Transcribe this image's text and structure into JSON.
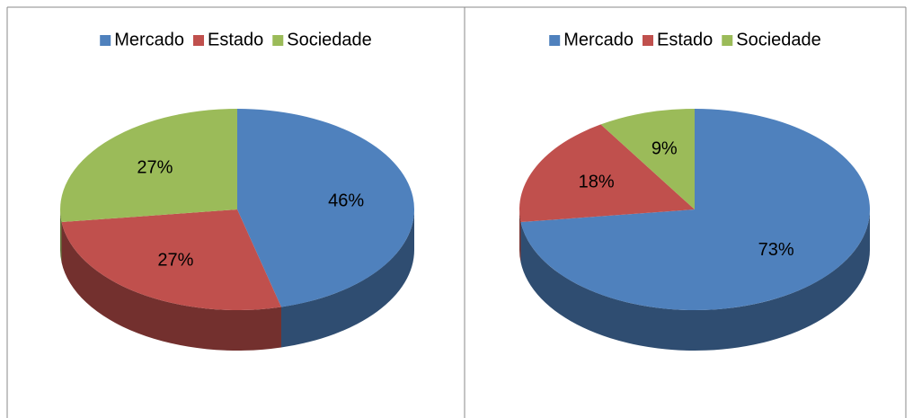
{
  "chart_data": [
    {
      "type": "pie",
      "categories": [
        "Mercado",
        "Estado",
        "Sociedade"
      ],
      "values": [
        46,
        27,
        27
      ],
      "value_labels": [
        "46%",
        "27%",
        "27%"
      ],
      "colors": [
        "#4f81bd",
        "#c0504d",
        "#9bbb59"
      ],
      "legend": "top"
    },
    {
      "type": "pie",
      "categories": [
        "Mercado",
        "Estado",
        "Sociedade"
      ],
      "values": [
        73,
        18,
        9
      ],
      "value_labels": [
        "73%",
        "18%",
        "9%"
      ],
      "colors": [
        "#4f81bd",
        "#c0504d",
        "#9bbb59"
      ],
      "legend": "top"
    }
  ]
}
